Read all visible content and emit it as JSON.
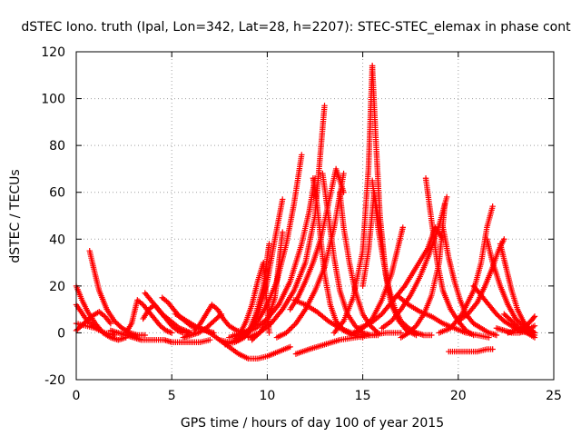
{
  "chart_data": {
    "type": "scatter",
    "title": "dSTEC Iono. truth (Ipal, Lon=342, Lat=28, h=2207): STEC-STEC_elemax in phase cont",
    "xlabel": "GPS time / hours of day 100 of year 2015",
    "ylabel": "dSTEC  / TECUs",
    "xlim": [
      0,
      25
    ],
    "ylim": [
      -20,
      120
    ],
    "x_ticks": [
      0,
      5,
      10,
      15,
      20,
      25
    ],
    "y_ticks": [
      -20,
      0,
      20,
      40,
      60,
      80,
      100,
      120
    ],
    "x_tick_labels": [
      "0",
      "5",
      "10",
      "15",
      "20",
      "25"
    ],
    "y_tick_labels": [
      "-20",
      "0",
      "20",
      "40",
      "60",
      "80",
      "100",
      "120"
    ],
    "grid": true,
    "marker": "+",
    "color": "#ff0000",
    "series": [
      {
        "x": [
          0.0,
          0.3,
          0.6,
          1.0,
          1.4,
          1.8,
          2.2,
          2.6
        ],
        "y": [
          20,
          14,
          9,
          4,
          0,
          -2,
          -3,
          -2
        ]
      },
      {
        "x": [
          0.0,
          0.5,
          1.0,
          1.5,
          2.0
        ],
        "y": [
          12,
          6,
          2,
          0,
          -1
        ]
      },
      {
        "x": [
          0.0,
          0.4,
          0.8,
          1.2,
          1.5,
          1.8
        ],
        "y": [
          1,
          4,
          7,
          9,
          7,
          4
        ]
      },
      {
        "x": [
          0.0,
          0.5,
          1.0
        ],
        "y": [
          4,
          3,
          2
        ]
      },
      {
        "x": [
          0.7,
          0.9,
          1.2,
          1.6,
          2.0,
          2.4,
          2.8,
          3.2,
          3.6
        ],
        "y": [
          35,
          28,
          18,
          10,
          5,
          2,
          0,
          -1,
          -1
        ]
      },
      {
        "x": [
          1.8,
          2.2,
          2.6,
          3.0,
          3.4,
          3.8,
          4.2,
          4.6,
          5.0,
          5.5,
          6.0,
          6.5,
          7.0
        ],
        "y": [
          1,
          0,
          -1,
          -2,
          -3,
          -3,
          -3,
          -3,
          -4,
          -4,
          -4,
          -4,
          -3
        ]
      },
      {
        "x": [
          2.6,
          2.9,
          3.2,
          3.5,
          3.8,
          4.1,
          4.4,
          4.7,
          5.0
        ],
        "y": [
          0,
          4,
          14,
          12,
          9,
          6,
          3,
          1,
          0
        ]
      },
      {
        "x": [
          3.5,
          3.8,
          4.1,
          4.4,
          4.7,
          5.0,
          5.3,
          5.6,
          5.9
        ],
        "y": [
          6,
          10,
          12,
          9,
          6,
          3,
          1,
          0,
          0
        ]
      },
      {
        "x": [
          3.6,
          3.9,
          4.2,
          4.5,
          4.8,
          5.1,
          5.4,
          5.7,
          6.0
        ],
        "y": [
          17,
          14,
          11,
          8,
          6,
          4,
          2,
          1,
          0
        ]
      },
      {
        "x": [
          4.5,
          4.8,
          5.1,
          5.4,
          5.7,
          6.0,
          6.3
        ],
        "y": [
          15,
          13,
          10,
          7,
          5,
          3,
          2
        ]
      },
      {
        "x": [
          5.2,
          5.6,
          6.0,
          6.4,
          6.8,
          7.2
        ],
        "y": [
          8,
          6,
          4,
          2,
          1,
          0
        ]
      },
      {
        "x": [
          5.6,
          6.0,
          6.4,
          6.8,
          7.2,
          7.6
        ],
        "y": [
          -2,
          -1,
          0,
          2,
          5,
          8
        ]
      },
      {
        "x": [
          6.2,
          6.5,
          6.8,
          7.1,
          7.4,
          7.7,
          8.0,
          8.4,
          8.8
        ],
        "y": [
          1,
          4,
          8,
          12,
          10,
          6,
          3,
          1,
          0
        ]
      },
      {
        "x": [
          6.5,
          7.0,
          7.5,
          8.0,
          8.5,
          9.0,
          9.5,
          10.0,
          10.6,
          11.2
        ],
        "y": [
          2,
          0,
          -3,
          -6,
          -9,
          -11,
          -11,
          -10,
          -8,
          -6
        ]
      },
      {
        "x": [
          7.5,
          8.0,
          8.5,
          9.0,
          9.4,
          9.8,
          10.1
        ],
        "y": [
          -3,
          -4,
          -3,
          0,
          8,
          20,
          38
        ]
      },
      {
        "x": [
          7.8,
          8.3,
          8.8,
          9.2,
          9.6,
          10.0,
          10.4,
          10.8
        ],
        "y": [
          -5,
          -4,
          -2,
          2,
          10,
          22,
          40,
          57
        ]
      },
      {
        "x": [
          8.0,
          8.5,
          9.0,
          9.5,
          10.0,
          10.5,
          11.0,
          11.4,
          11.8
        ],
        "y": [
          -2,
          -1,
          1,
          5,
          12,
          22,
          38,
          55,
          76
        ]
      },
      {
        "x": [
          8.2,
          8.8,
          9.4,
          10.0,
          10.6,
          11.2,
          11.8,
          12.2,
          12.5
        ],
        "y": [
          -1,
          0,
          2,
          6,
          12,
          22,
          38,
          52,
          66
        ]
      },
      {
        "x": [
          8.3,
          8.6,
          8.9,
          9.2,
          9.5,
          9.8,
          10.1
        ],
        "y": [
          -3,
          0,
          5,
          12,
          22,
          30,
          0
        ]
      },
      {
        "x": [
          9.0,
          9.6,
          10.2,
          10.8,
          11.4,
          12.0,
          12.5,
          13.0
        ],
        "y": [
          -2,
          0,
          4,
          10,
          18,
          30,
          50,
          97
        ]
      },
      {
        "x": [
          9.2,
          9.6,
          10.0,
          10.4,
          10.8
        ],
        "y": [
          -3,
          0,
          5,
          15,
          43
        ]
      },
      {
        "x": [
          10.5,
          11.0,
          11.5,
          12.0,
          12.5,
          13.0,
          13.5,
          14.0
        ],
        "y": [
          -2,
          0,
          4,
          10,
          18,
          28,
          45,
          68
        ]
      },
      {
        "x": [
          11.2,
          11.6,
          12.0,
          12.4,
          12.8,
          13.2,
          13.6,
          14.0
        ],
        "y": [
          10,
          15,
          22,
          30,
          40,
          55,
          70,
          60
        ]
      },
      {
        "x": [
          11.4,
          12.0,
          12.6,
          13.2,
          13.8,
          14.4,
          15.0
        ],
        "y": [
          14,
          12,
          9,
          5,
          2,
          0,
          -1
        ]
      },
      {
        "x": [
          12.4,
          12.6,
          12.8,
          13.0,
          13.3,
          13.6,
          14.0,
          14.5,
          15.0
        ],
        "y": [
          66,
          55,
          40,
          25,
          12,
          5,
          1,
          -1,
          -2
        ]
      },
      {
        "x": [
          12.9,
          13.2,
          13.5,
          13.8,
          14.2,
          14.6,
          15.0,
          15.4,
          15.8
        ],
        "y": [
          68,
          50,
          32,
          18,
          8,
          3,
          0,
          -1,
          -1
        ]
      },
      {
        "x": [
          13.8,
          14.0,
          14.3,
          14.6,
          15.0,
          15.4,
          15.8
        ],
        "y": [
          60,
          45,
          30,
          18,
          8,
          3,
          0
        ]
      },
      {
        "x": [
          13.5,
          14.0,
          14.5,
          15.0,
          15.3,
          15.5
        ],
        "y": [
          0,
          5,
          15,
          35,
          70,
          114
        ]
      },
      {
        "x": [
          15.5,
          15.7,
          15.9,
          16.2,
          16.5,
          16.9,
          17.3,
          17.8
        ],
        "y": [
          114,
          80,
          50,
          25,
          12,
          5,
          1,
          -1
        ]
      },
      {
        "x": [
          15.0,
          15.3,
          15.6,
          15.9,
          16.2,
          16.5
        ],
        "y": [
          20,
          35,
          60,
          45,
          25,
          12
        ]
      },
      {
        "x": [
          15.5,
          15.8,
          16.1,
          16.4,
          16.7,
          17.0,
          17.4,
          17.8,
          18.2,
          18.6
        ],
        "y": [
          65,
          45,
          30,
          18,
          10,
          5,
          2,
          0,
          -1,
          -1
        ]
      },
      {
        "x": [
          14.5,
          15.0,
          15.5,
          16.0,
          16.5,
          16.8,
          17.1
        ],
        "y": [
          0,
          2,
          6,
          14,
          25,
          35,
          45
        ]
      },
      {
        "x": [
          11.5,
          12.2,
          13.0,
          13.8,
          14.6,
          15.4,
          16.2,
          17.0
        ],
        "y": [
          -9,
          -7,
          -5,
          -3,
          -2,
          -1,
          0,
          0
        ]
      },
      {
        "x": [
          14.8,
          15.4,
          16.0,
          16.6,
          17.2,
          17.8,
          18.4,
          18.8,
          19.2
        ],
        "y": [
          2,
          4,
          8,
          14,
          20,
          28,
          36,
          45,
          40
        ]
      },
      {
        "x": [
          16.0,
          16.5,
          17.0,
          17.5,
          18.0,
          18.5,
          19.0,
          19.4
        ],
        "y": [
          2,
          5,
          10,
          16,
          24,
          34,
          46,
          58
        ]
      },
      {
        "x": [
          17.0,
          17.4,
          17.8,
          18.2,
          18.6,
          19.0,
          19.3
        ],
        "y": [
          -2,
          0,
          3,
          8,
          16,
          30,
          55
        ]
      },
      {
        "x": [
          18.3,
          18.6,
          18.9,
          19.2,
          19.6,
          20.0,
          20.4,
          20.8
        ],
        "y": [
          66,
          48,
          30,
          18,
          10,
          5,
          1,
          -1
        ]
      },
      {
        "x": [
          19.2,
          19.5,
          19.8,
          20.1,
          20.4,
          20.8,
          21.2,
          21.6,
          22.0
        ],
        "y": [
          45,
          32,
          22,
          14,
          8,
          4,
          2,
          0,
          -1
        ]
      },
      {
        "x": [
          16.8,
          17.4,
          18.0,
          18.6,
          19.2,
          19.8,
          20.4,
          21.0,
          21.6
        ],
        "y": [
          16,
          12,
          9,
          7,
          4,
          2,
          0,
          -1,
          -2
        ]
      },
      {
        "x": [
          19.0,
          19.6,
          20.2,
          20.8,
          21.2,
          21.5,
          21.8
        ],
        "y": [
          0,
          2,
          8,
          18,
          30,
          45,
          54
        ]
      },
      {
        "x": [
          20.0,
          20.5,
          21.0,
          21.4,
          21.8,
          22.1,
          22.4
        ],
        "y": [
          5,
          8,
          13,
          20,
          28,
          35,
          40
        ]
      },
      {
        "x": [
          19.5,
          20.0,
          20.5,
          21.0,
          21.5,
          21.8
        ],
        "y": [
          -8,
          -8,
          -8,
          -8,
          -7,
          -7
        ]
      },
      {
        "x": [
          21.5,
          21.8,
          22.2,
          22.6,
          23.0,
          23.4,
          23.8,
          24.0
        ],
        "y": [
          40,
          30,
          20,
          12,
          6,
          3,
          1,
          0
        ]
      },
      {
        "x": [
          22.2,
          22.5,
          22.8,
          23.1,
          23.4,
          23.7,
          24.0
        ],
        "y": [
          38,
          28,
          18,
          10,
          5,
          2,
          0
        ]
      },
      {
        "x": [
          22.0,
          22.4,
          22.8,
          23.2,
          23.6,
          24.0
        ],
        "y": [
          2,
          1,
          0,
          0,
          1,
          3
        ]
      },
      {
        "x": [
          22.4,
          22.8,
          23.2,
          23.6,
          24.0
        ],
        "y": [
          8,
          5,
          2,
          0,
          -2
        ]
      },
      {
        "x": [
          22.6,
          23.0,
          23.4,
          23.8,
          24.0
        ],
        "y": [
          0,
          1,
          2,
          5,
          7
        ]
      },
      {
        "x": [
          20.8,
          21.2,
          21.6,
          22.0,
          22.4,
          22.8,
          23.2,
          23.6,
          24.0
        ],
        "y": [
          20,
          16,
          12,
          8,
          5,
          3,
          1,
          0,
          -1
        ]
      }
    ]
  }
}
